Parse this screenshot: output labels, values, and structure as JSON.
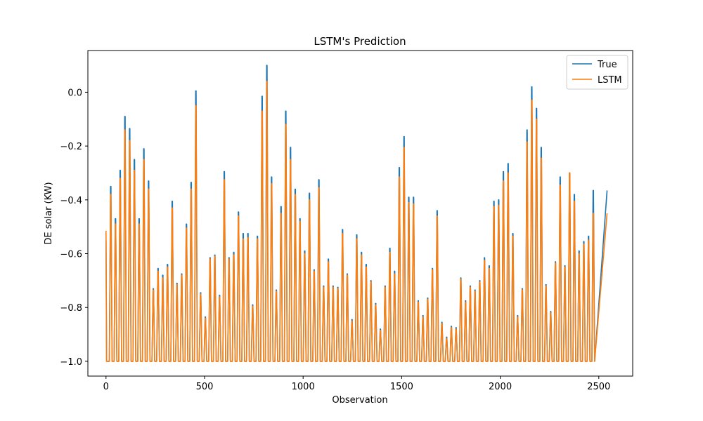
{
  "chart_data": {
    "type": "line",
    "title": "LSTM's Prediction",
    "xlabel": "Observation",
    "ylabel": "DE solar (KW)",
    "xlim": [
      -92,
      2672
    ],
    "ylim": [
      -1.055,
      0.155
    ],
    "xticks": [
      0,
      500,
      1000,
      1500,
      2000,
      2500
    ],
    "xtick_labels": [
      "0",
      "500",
      "1000",
      "1500",
      "2000",
      "2500"
    ],
    "yticks": [
      -1.0,
      -0.8,
      -0.6,
      -0.4,
      -0.2,
      0.0
    ],
    "ytick_labels": [
      "−1.0",
      "−0.8",
      "−0.6",
      "−0.4",
      "−0.2",
      "0.0"
    ],
    "grid": false,
    "legend_position": "top-right",
    "baseline": -1.0,
    "period": 24,
    "x_end": 2542,
    "first_points": {
      "True": -0.55,
      "LSTM": -0.515
    },
    "series": [
      {
        "name": "True",
        "color": "#1f77b4",
        "peaks": [
          -0.35,
          -0.47,
          -0.29,
          -0.09,
          -0.135,
          -0.25,
          -0.47,
          -0.21,
          -0.33,
          -0.73,
          -0.655,
          -0.68,
          -0.64,
          -0.405,
          -0.71,
          -0.675,
          -0.49,
          -0.335,
          0.005,
          -0.745,
          -0.835,
          -0.615,
          -0.605,
          -0.755,
          -0.295,
          -0.615,
          -0.595,
          -0.445,
          -0.525,
          -0.525,
          -0.79,
          -0.535,
          -0.015,
          0.1,
          -0.315,
          -0.735,
          -0.425,
          -0.07,
          -0.205,
          -0.36,
          -0.47,
          -0.59,
          -0.375,
          -0.66,
          -0.325,
          -0.72,
          -0.62,
          -0.72,
          -0.725,
          -0.51,
          -0.675,
          -0.845,
          -0.53,
          -0.595,
          -0.64,
          -0.7,
          -0.785,
          -0.88,
          -0.72,
          -0.58,
          -0.665,
          -0.28,
          -0.165,
          -0.39,
          -0.39,
          -0.775,
          -0.83,
          -0.765,
          -0.655,
          -0.44,
          -0.855,
          -0.91,
          -0.87,
          -0.875,
          -0.69,
          -0.775,
          -0.72,
          -0.735,
          -0.7,
          -0.615,
          -0.645,
          -0.405,
          -0.4,
          -0.295,
          -0.265,
          -0.525,
          -0.83,
          -0.73,
          -0.14,
          0.02,
          -0.06,
          -0.205,
          -0.715,
          -0.815,
          -0.63,
          -0.315,
          -0.645,
          -0.3,
          -0.38,
          -0.59,
          -0.555,
          -0.535,
          -0.365
        ]
      },
      {
        "name": "LSTM",
        "color": "#ff7f0e",
        "peaks": [
          -0.38,
          -0.49,
          -0.32,
          -0.14,
          -0.18,
          -0.29,
          -0.49,
          -0.25,
          -0.36,
          -0.735,
          -0.665,
          -0.69,
          -0.65,
          -0.43,
          -0.715,
          -0.68,
          -0.505,
          -0.36,
          -0.05,
          -0.75,
          -0.84,
          -0.62,
          -0.61,
          -0.76,
          -0.325,
          -0.62,
          -0.605,
          -0.46,
          -0.545,
          -0.54,
          -0.795,
          -0.545,
          -0.07,
          0.04,
          -0.34,
          -0.74,
          -0.45,
          -0.12,
          -0.25,
          -0.38,
          -0.48,
          -0.6,
          -0.4,
          -0.665,
          -0.355,
          -0.725,
          -0.63,
          -0.725,
          -0.73,
          -0.525,
          -0.68,
          -0.85,
          -0.545,
          -0.605,
          -0.65,
          -0.705,
          -0.79,
          -0.885,
          -0.725,
          -0.595,
          -0.675,
          -0.315,
          -0.205,
          -0.41,
          -0.415,
          -0.78,
          -0.835,
          -0.77,
          -0.66,
          -0.46,
          -0.86,
          -0.915,
          -0.875,
          -0.88,
          -0.695,
          -0.78,
          -0.725,
          -0.74,
          -0.705,
          -0.625,
          -0.655,
          -0.425,
          -0.42,
          -0.33,
          -0.3,
          -0.535,
          -0.835,
          -0.735,
          -0.185,
          -0.03,
          -0.1,
          -0.245,
          -0.72,
          -0.82,
          -0.635,
          -0.345,
          -0.65,
          -0.3,
          -0.405,
          -0.6,
          -0.565,
          -0.55,
          -0.45
        ]
      }
    ]
  }
}
